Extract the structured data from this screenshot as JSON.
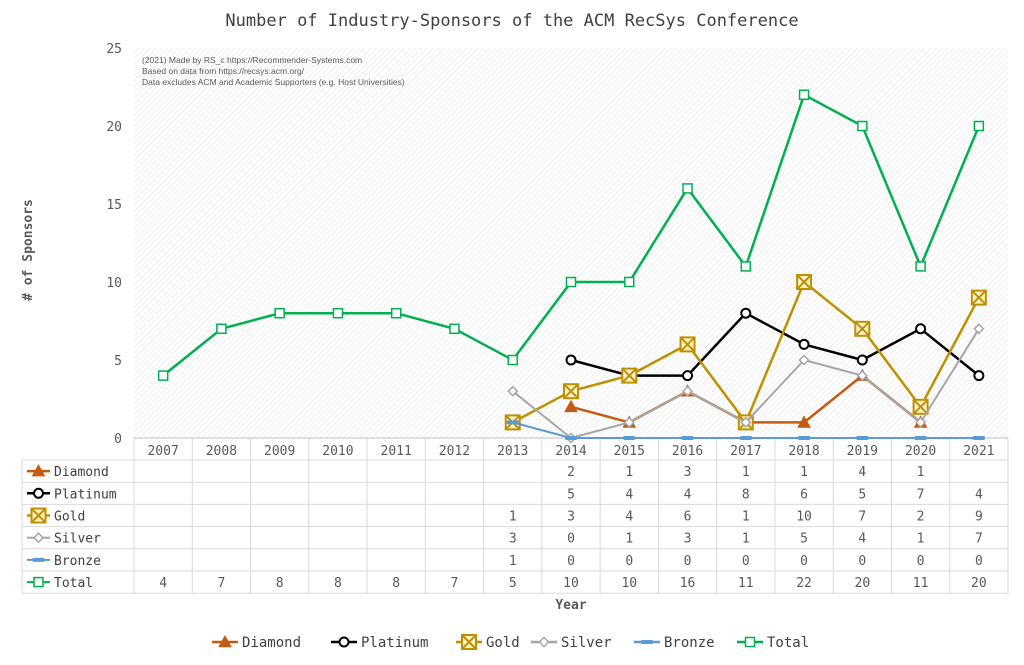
{
  "chart_data": {
    "type": "line",
    "title": "Number of Industry-Sponsors of the ACM RecSys Conference",
    "xlabel": "Year",
    "ylabel": "# of Sponsors",
    "ylim": [
      0,
      25
    ],
    "yticks": [
      "0",
      "5",
      "10",
      "15",
      "20",
      "25"
    ],
    "categories": [
      "2007",
      "2008",
      "2009",
      "2010",
      "2011",
      "2012",
      "2013",
      "2014",
      "2015",
      "2016",
      "2017",
      "2018",
      "2019",
      "2020",
      "2021"
    ],
    "notes": [
      "(2021) Made by RS_c https://Recommender-Systems.com",
      "Based on data from https://recsys.acm.org/",
      "Data excludes ACM and Academic Supporters (e.g. Host Universities)"
    ],
    "grid": "hatched background",
    "legend": "bottom",
    "data_table": true,
    "series": [
      {
        "name": "Diamond",
        "color": "#c55a11",
        "marker": "triangle",
        "values": [
          null,
          null,
          null,
          null,
          null,
          null,
          null,
          2,
          1,
          3,
          1,
          1,
          4,
          1,
          null
        ]
      },
      {
        "name": "Platinum",
        "color": "#000000",
        "marker": "circle",
        "values": [
          null,
          null,
          null,
          null,
          null,
          null,
          null,
          5,
          4,
          4,
          8,
          6,
          5,
          7,
          4
        ]
      },
      {
        "name": "Gold",
        "color": "#bf9000",
        "marker": "xsquare",
        "values": [
          null,
          null,
          null,
          null,
          null,
          null,
          1,
          3,
          4,
          6,
          1,
          10,
          7,
          2,
          9
        ]
      },
      {
        "name": "Silver",
        "color": "#a6a6a6",
        "marker": "diamond",
        "values": [
          null,
          null,
          null,
          null,
          null,
          null,
          3,
          0,
          1,
          3,
          1,
          5,
          4,
          1,
          7
        ]
      },
      {
        "name": "Bronze",
        "color": "#5b9bd5",
        "marker": "dash",
        "values": [
          null,
          null,
          null,
          null,
          null,
          null,
          1,
          0,
          0,
          0,
          0,
          0,
          0,
          0,
          0
        ]
      },
      {
        "name": "Total",
        "color": "#00b050",
        "marker": "square",
        "values": [
          4,
          7,
          8,
          8,
          8,
          7,
          5,
          10,
          10,
          16,
          11,
          22,
          20,
          11,
          20
        ]
      }
    ]
  }
}
